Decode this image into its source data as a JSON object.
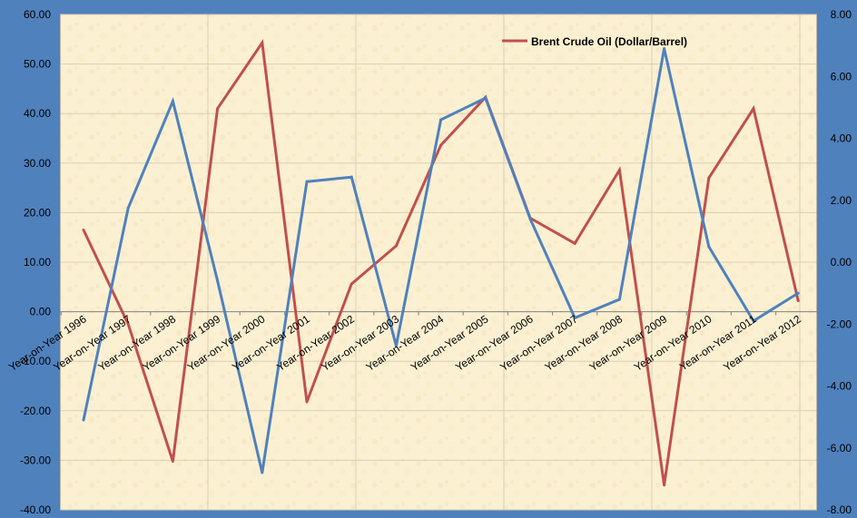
{
  "chart_data": {
    "type": "line",
    "categories": [
      "Year-on-Year 1996",
      "Year-on-Year 1997",
      "Year-on-Year 1998",
      "Year-on-Year 1999",
      "Year-on-Year 2000",
      "Year-on-Year 2001",
      "Year-on-Year 2002",
      "Year-on-Year 2003",
      "Year-on-Year 2004",
      "Year-on-Year 2005",
      "Year-on-Year 2006",
      "Year-on-Year 2007",
      "Year-on-Year 2008",
      "Year-on-Year 2009",
      "Year-on-Year 2010",
      "Year-on-Year 2011",
      "Year-on-Year 2012"
    ],
    "series": [
      {
        "name": "Brent Crude Oil (Dollar/Barrel)",
        "axis": "left",
        "color": "#c0504d",
        "values": [
          16.5,
          -2.5,
          -30.2,
          41.0,
          54.3,
          -18.2,
          5.6,
          13.3,
          33.6,
          43.3,
          18.9,
          13.8,
          28.6,
          -35.0,
          27.0,
          41.0,
          2.2
        ]
      },
      {
        "axis": "right",
        "color": "#4f81bd",
        "values": [
          -5.1,
          1.75,
          5.2,
          -0.6,
          -6.8,
          2.6,
          2.75,
          -2.7,
          4.6,
          5.3,
          1.4,
          -1.8,
          -1.2,
          6.9,
          0.5,
          -1.9,
          -1.0
        ]
      }
    ],
    "left_axis": {
      "range": [
        -40,
        60
      ],
      "ticks": [
        "60.00",
        "50.00",
        "40.00",
        "30.00",
        "20.00",
        "10.00",
        "0.00",
        "-10.00",
        "-20.00",
        "-30.00",
        "-40.00"
      ]
    },
    "right_axis": {
      "range": [
        -8,
        8
      ],
      "ticks": [
        "8.00",
        "6.00",
        "4.00",
        "2.00",
        "0.00",
        "-2.00",
        "-4.00",
        "-6.00",
        "-8.00"
      ]
    },
    "legend": {
      "placement": "top-right",
      "label": "Brent Crude Oil (Dollar/Barrel)"
    },
    "grid": true,
    "colors": {
      "frame": "#4f81bd",
      "plot_background": "#fbf0d2",
      "red_series": "#c0504d",
      "blue_series": "#4f81bd"
    }
  }
}
